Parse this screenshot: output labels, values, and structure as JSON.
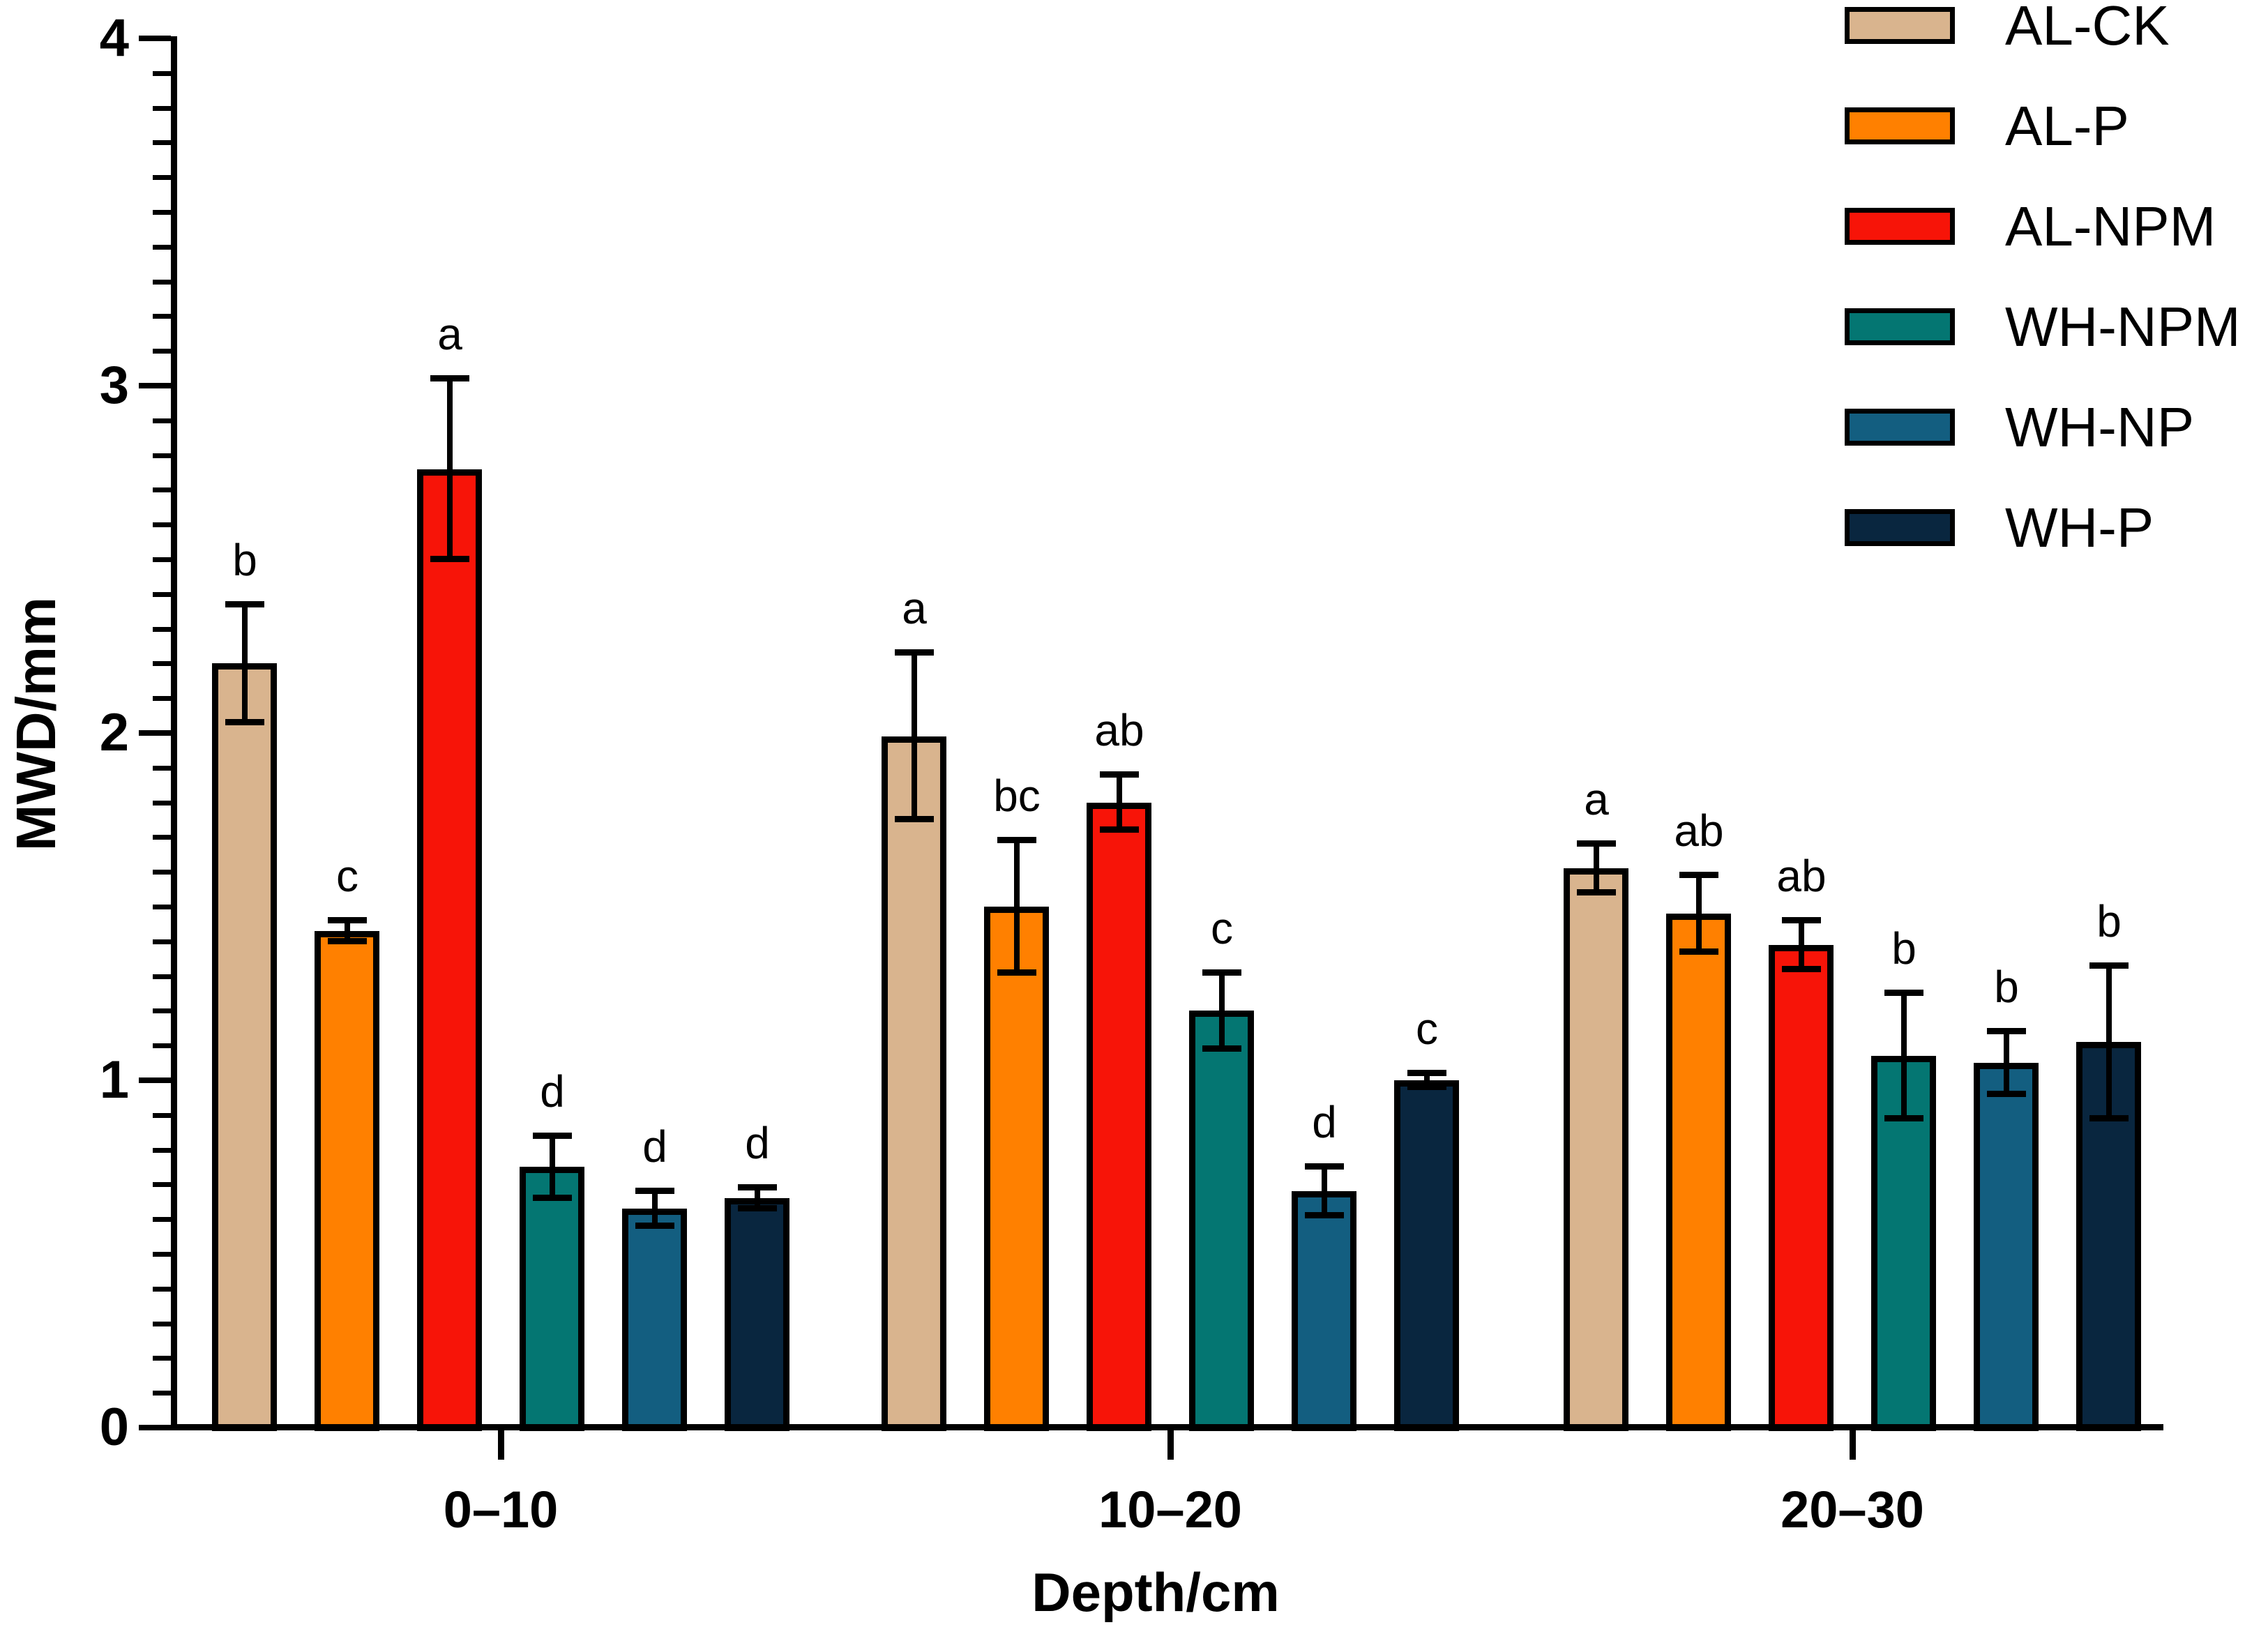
{
  "chart_data": {
    "type": "bar",
    "title": "",
    "ylabel": "MWD/mm",
    "xlabel": "Depth/cm",
    "ylim": [
      0,
      4
    ],
    "yticks": [
      0,
      1,
      2,
      3,
      4
    ],
    "minor_tick_step": 0.1,
    "grid": false,
    "legend_position": "top-right",
    "error_bars": "plus-minus, capped",
    "categories": [
      "0–10",
      "10–20",
      "20–30"
    ],
    "series": [
      {
        "name": "AL-CK",
        "color": "#D9B48E",
        "values": [
          2.2,
          1.99,
          1.61
        ],
        "errors": [
          0.17,
          0.24,
          0.07
        ],
        "letters": [
          "b",
          "a",
          "a"
        ]
      },
      {
        "name": "AL-P",
        "color": "#FF8000",
        "values": [
          1.43,
          1.5,
          1.48
        ],
        "errors": [
          0.03,
          0.19,
          0.11
        ],
        "letters": [
          "c",
          "bc",
          "ab"
        ]
      },
      {
        "name": "AL-NPM",
        "color": "#F71408",
        "values": [
          2.76,
          1.8,
          1.39
        ],
        "errors": [
          0.26,
          0.08,
          0.07
        ],
        "letters": [
          "a",
          "ab",
          "ab"
        ]
      },
      {
        "name": "WH-NPM",
        "color": "#047672",
        "values": [
          0.75,
          1.2,
          1.07
        ],
        "errors": [
          0.09,
          0.11,
          0.18
        ],
        "letters": [
          "d",
          "c",
          "b"
        ]
      },
      {
        "name": "WH-NP",
        "color": "#135E80",
        "values": [
          0.63,
          0.68,
          1.05
        ],
        "errors": [
          0.05,
          0.07,
          0.09
        ],
        "letters": [
          "d",
          "d",
          "b"
        ]
      },
      {
        "name": "WH-P",
        "color": "#09263F",
        "values": [
          0.66,
          1.0,
          1.11
        ],
        "errors": [
          0.03,
          0.02,
          0.22
        ],
        "letters": [
          "d",
          "c",
          "b"
        ]
      }
    ]
  }
}
